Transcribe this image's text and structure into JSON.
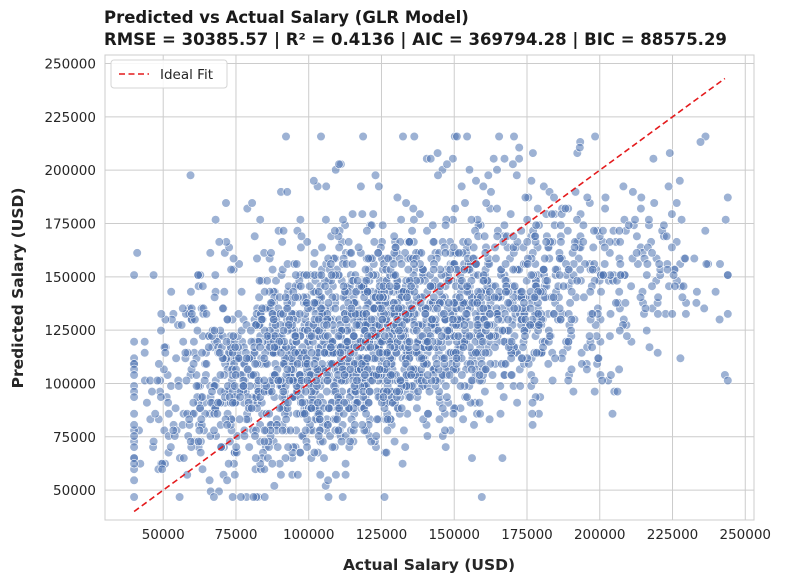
{
  "chart_data": {
    "type": "scatter",
    "title": "Predicted vs Actual Salary (GLR Model)",
    "subtitle": "RMSE = 30385.57 | R² = 0.4136 | AIC = 369794.28 | BIC = 88575.29",
    "xlabel": "Actual Salary (USD)",
    "ylabel": "Predicted Salary (USD)",
    "xlim": [
      30000,
      253000
    ],
    "ylim": [
      36000,
      254000
    ],
    "x_ticks": [
      "50000",
      "75000",
      "100000",
      "125000",
      "150000",
      "175000",
      "200000",
      "225000",
      "250000"
    ],
    "y_ticks": [
      "50000",
      "75000",
      "100000",
      "125000",
      "150000",
      "175000",
      "200000",
      "225000",
      "250000"
    ],
    "grid": true,
    "legend": "top-left",
    "series": [
      {
        "name": "",
        "kind": "points",
        "color": "#4c72b0",
        "point_count": 2600
      },
      {
        "name": "Ideal Fit",
        "kind": "line",
        "color": "#e41a1c",
        "style": "dashed",
        "x": [
          40000,
          243000
        ],
        "y": [
          40000,
          243000
        ]
      }
    ]
  }
}
